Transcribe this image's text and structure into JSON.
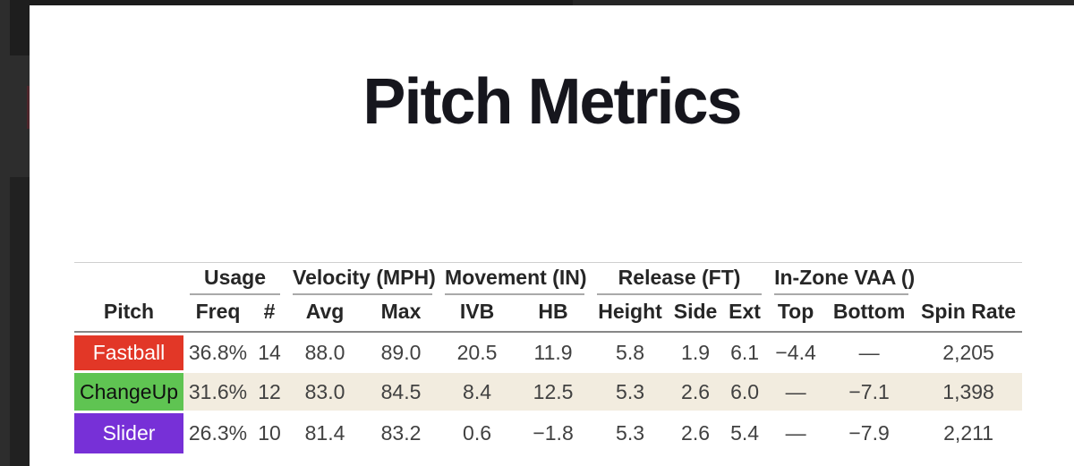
{
  "page": {
    "title": "Pitch Metrics"
  },
  "table": {
    "groups": [
      {
        "label": "",
        "span": 1
      },
      {
        "label": "Usage",
        "span": 2
      },
      {
        "label": "Velocity (MPH)",
        "span": 2
      },
      {
        "label": "Movement (IN)",
        "span": 2
      },
      {
        "label": "Release (FT)",
        "span": 3
      },
      {
        "label": "In-Zone VAA ()",
        "span": 2
      },
      {
        "label": "",
        "span": 1
      }
    ],
    "columns": [
      "Pitch",
      "Freq",
      "#",
      "Avg",
      "Max",
      "IVB",
      "HB",
      "Height",
      "Side",
      "Ext",
      "Top",
      "Bottom",
      "Spin Rate"
    ],
    "stripe_color": "#f2ecdf",
    "rows": [
      {
        "pitch": "Fastball",
        "color": "#e23727",
        "text_color": "#ffffff",
        "striped": false,
        "values": [
          "36.8%",
          "14",
          "88.0",
          "89.0",
          "20.5",
          "11.9",
          "5.8",
          "1.9",
          "6.1",
          "−4.4",
          "—",
          "2,205"
        ]
      },
      {
        "pitch": "ChangeUp",
        "color": "#5fc452",
        "text_color": "#101010",
        "striped": true,
        "values": [
          "31.6%",
          "12",
          "83.0",
          "84.5",
          "8.4",
          "12.5",
          "5.3",
          "2.6",
          "6.0",
          "—",
          "−7.1",
          "1,398"
        ]
      },
      {
        "pitch": "Slider",
        "color": "#7730d7",
        "text_color": "#ffffff",
        "striped": false,
        "values": [
          "26.3%",
          "10",
          "81.4",
          "83.2",
          "0.6",
          "−1.8",
          "5.3",
          "2.6",
          "5.4",
          "—",
          "−7.9",
          "2,211"
        ]
      }
    ]
  }
}
